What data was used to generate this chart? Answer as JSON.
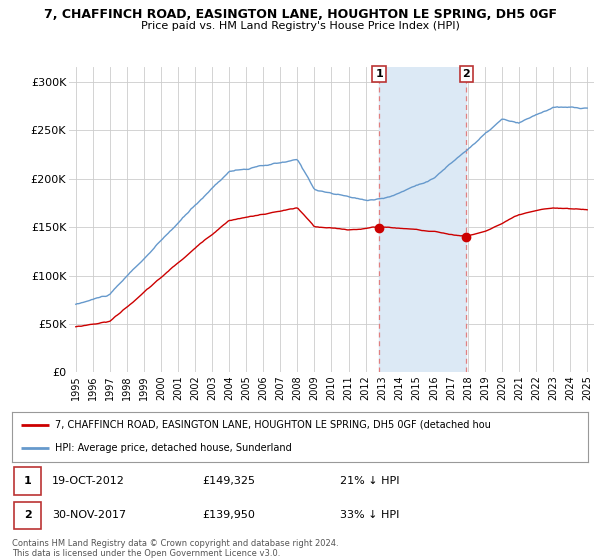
{
  "title1": "7, CHAFFINCH ROAD, EASINGTON LANE, HOUGHTON LE SPRING, DH5 0GF",
  "title2": "Price paid vs. HM Land Registry's House Price Index (HPI)",
  "ylabel_ticks": [
    "£0",
    "£50K",
    "£100K",
    "£150K",
    "£200K",
    "£250K",
    "£300K"
  ],
  "ytick_values": [
    0,
    50000,
    100000,
    150000,
    200000,
    250000,
    300000
  ],
  "ylim": [
    0,
    315000
  ],
  "sale1_date": "19-OCT-2012",
  "sale1_price": 149325,
  "sale1_pct": "21% ↓ HPI",
  "sale2_date": "30-NOV-2017",
  "sale2_price": 139950,
  "sale2_pct": "33% ↓ HPI",
  "legend_line1": "7, CHAFFINCH ROAD, EASINGTON LANE, HOUGHTON LE SPRING, DH5 0GF (detached hou",
  "legend_line2": "HPI: Average price, detached house, Sunderland",
  "footer": "Contains HM Land Registry data © Crown copyright and database right 2024.\nThis data is licensed under the Open Government Licence v3.0.",
  "line_color_red": "#cc0000",
  "line_color_blue": "#6699cc",
  "shaded_color": "#dce9f5",
  "vline_color": "#e08080",
  "background_color": "#ffffff",
  "grid_color": "#cccccc"
}
